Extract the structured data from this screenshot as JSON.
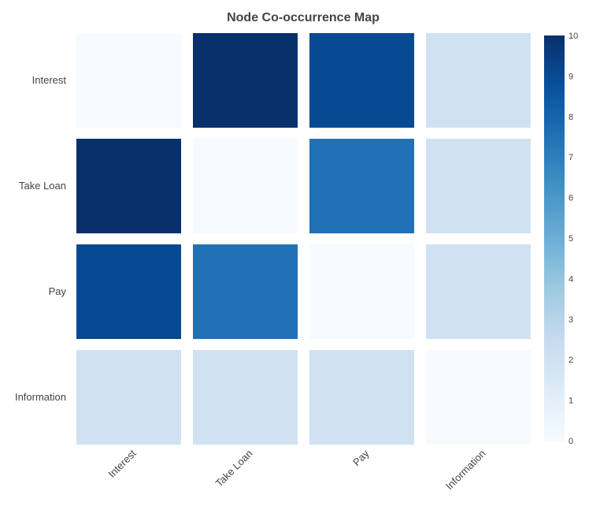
{
  "chart_data": {
    "type": "heatmap",
    "title": "Node Co-occurrence Map",
    "rows": [
      "Interest",
      "Take Loan",
      "Pay",
      "Information"
    ],
    "columns": [
      "Interest",
      "Take Loan",
      "Pay",
      "Information"
    ],
    "values": [
      [
        0,
        10,
        9,
        2
      ],
      [
        10,
        0,
        7.5,
        2
      ],
      [
        9,
        7.5,
        0,
        2
      ],
      [
        2,
        2,
        2,
        0
      ]
    ],
    "colorbar": {
      "min": 0,
      "max": 10,
      "ticks": [
        "0",
        "1",
        "2",
        "3",
        "4",
        "5",
        "6",
        "7",
        "8",
        "9",
        "10"
      ]
    },
    "colorscale": "Blues",
    "colors": {
      "low": "#f7fbff",
      "high": "#08306b",
      "text": "#444444",
      "background": "#ffffff"
    }
  }
}
